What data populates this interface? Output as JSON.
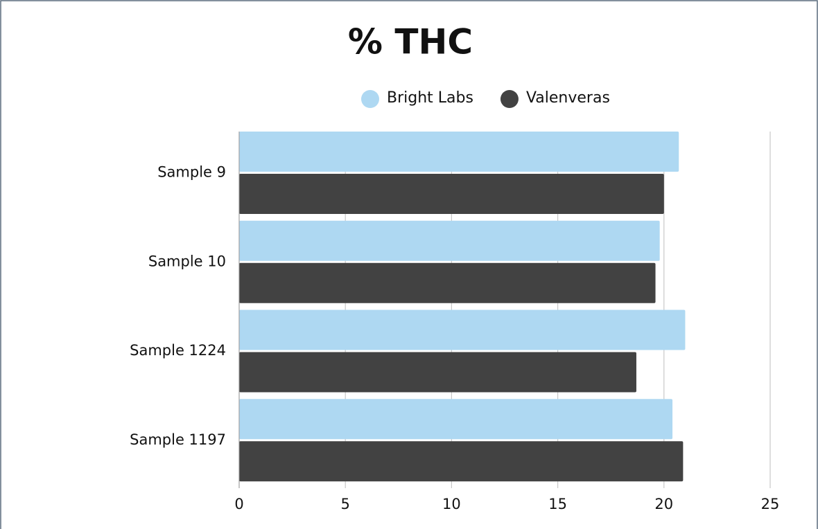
{
  "chart_data": {
    "type": "bar",
    "orientation": "horizontal",
    "title": "% THC",
    "categories": [
      "Sample 9",
      "Sample 10",
      "Sample 1224",
      "Sample 1197"
    ],
    "series": [
      {
        "name": "Bright Labs",
        "color": "#aed8f2",
        "values": [
          20.7,
          19.8,
          21.0,
          20.4
        ]
      },
      {
        "name": "Valenveras",
        "color": "#424242",
        "values": [
          20.0,
          19.6,
          18.7,
          20.9
        ]
      }
    ],
    "xlim": [
      0,
      25
    ],
    "xticks": [
      0,
      5,
      10,
      15,
      20,
      25
    ],
    "grid": true,
    "legend": "top"
  }
}
